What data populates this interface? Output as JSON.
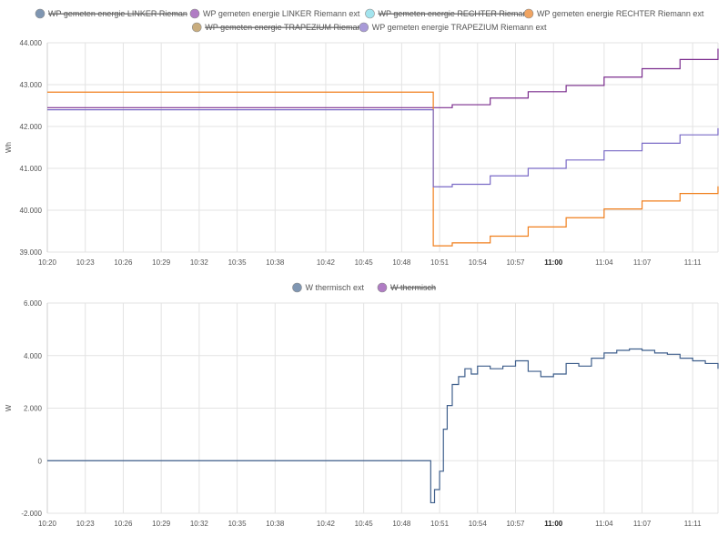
{
  "chart_data": [
    {
      "type": "line",
      "step": true,
      "xlabel": "",
      "ylabel": "Wh",
      "ylim": [
        39000,
        44000
      ],
      "yticks": [
        "39.000",
        "40.000",
        "41.000",
        "42.000",
        "43.000",
        "44.000"
      ],
      "xlim": [
        "10:20",
        "11:13"
      ],
      "xticks": [
        "10:20",
        "10:23",
        "10:26",
        "10:29",
        "10:32",
        "10:35",
        "10:38",
        "10:42",
        "10:45",
        "10:48",
        "10:51",
        "10:54",
        "10:57",
        "11:00",
        "11:04",
        "11:07",
        "11:11"
      ],
      "bold_ticks": [
        "11:00"
      ],
      "grid": true,
      "legend": [
        {
          "name": "WP gemeten energie LINKER Rieman",
          "color": "#7f96b2",
          "hidden": true
        },
        {
          "name": "WP gemeten energie LINKER Riemann ext",
          "color": "#b07cc4",
          "hidden": false
        },
        {
          "name": "WP gemeten energie RECHTER Rieman",
          "color": "#a3e4ee",
          "hidden": true
        },
        {
          "name": "WP gemeten energie RECHTER Riemann ext",
          "color": "#f0a462",
          "hidden": false
        },
        {
          "name": "WP gemeten energie TRAPEZIUM Rieman",
          "color": "#c9ad7e",
          "hidden": true
        },
        {
          "name": "WP gemeten energie TRAPEZIUM Riemann ext",
          "color": "#a89ad8",
          "hidden": false
        }
      ],
      "series": [
        {
          "name": "WP gemeten energie LINKER Riemann ext",
          "color": "#7b2d8e",
          "x": [
            "10:20",
            "10:50.5",
            "10:52",
            "10:55",
            "10:58",
            "11:01",
            "11:04",
            "11:07",
            "11:10",
            "11:13"
          ],
          "y": [
            42450,
            42450,
            42520,
            42680,
            42830,
            42980,
            43180,
            43380,
            43600,
            43860
          ]
        },
        {
          "name": "WP gemeten energie RECHTER Riemann ext",
          "color": "#f07f1c",
          "x": [
            "10:20",
            "10:50.5",
            "10:52",
            "10:55",
            "10:58",
            "11:01",
            "11:04",
            "11:07",
            "11:10",
            "11:13"
          ],
          "y": [
            42820,
            39150,
            39220,
            39380,
            39600,
            39820,
            40030,
            40220,
            40400,
            40570
          ]
        },
        {
          "name": "WP gemeten energie TRAPEZIUM Riemann ext",
          "color": "#7a6ac6",
          "x": [
            "10:20",
            "10:50.5",
            "10:52",
            "10:55",
            "10:58",
            "11:01",
            "11:04",
            "11:07",
            "11:10",
            "11:13"
          ],
          "y": [
            42400,
            40560,
            40620,
            40820,
            41000,
            41200,
            41420,
            41600,
            41800,
            41960
          ]
        }
      ]
    },
    {
      "type": "line",
      "step": true,
      "xlabel": "",
      "ylabel": "W",
      "ylim": [
        -2000,
        6000
      ],
      "yticks": [
        "-2.000",
        "0",
        "2.000",
        "4.000",
        "6.000"
      ],
      "xlim": [
        "10:20",
        "11:13"
      ],
      "xticks": [
        "10:20",
        "10:23",
        "10:26",
        "10:29",
        "10:32",
        "10:35",
        "10:38",
        "10:42",
        "10:45",
        "10:48",
        "10:51",
        "10:54",
        "10:57",
        "11:00",
        "11:04",
        "11:07",
        "11:11"
      ],
      "bold_ticks": [
        "11:00"
      ],
      "grid": true,
      "legend": [
        {
          "name": "W thermisch ext",
          "color": "#7f96b2",
          "hidden": false
        },
        {
          "name": "W thermisch",
          "color": "#b07cc4",
          "hidden": true
        }
      ],
      "series": [
        {
          "name": "W thermisch ext",
          "color": "#3f5f8c",
          "x": [
            "10:20",
            "10:50",
            "10:50.3",
            "10:50.6",
            "10:51",
            "10:51.3",
            "10:51.6",
            "10:52",
            "10:52.5",
            "10:53",
            "10:53.5",
            "10:54",
            "10:55",
            "10:56",
            "10:57",
            "10:58",
            "10:59",
            "11:00",
            "11:01",
            "11:02",
            "11:03",
            "11:04",
            "11:05",
            "11:06",
            "11:07",
            "11:08",
            "11:09",
            "11:10",
            "11:11",
            "11:12",
            "11:13"
          ],
          "y": [
            0,
            0,
            -1600,
            -1100,
            -400,
            1200,
            2100,
            2900,
            3200,
            3500,
            3300,
            3600,
            3500,
            3600,
            3800,
            3400,
            3200,
            3300,
            3700,
            3600,
            3900,
            4100,
            4200,
            4250,
            4200,
            4100,
            4050,
            3900,
            3800,
            3700,
            3500
          ]
        }
      ]
    }
  ]
}
